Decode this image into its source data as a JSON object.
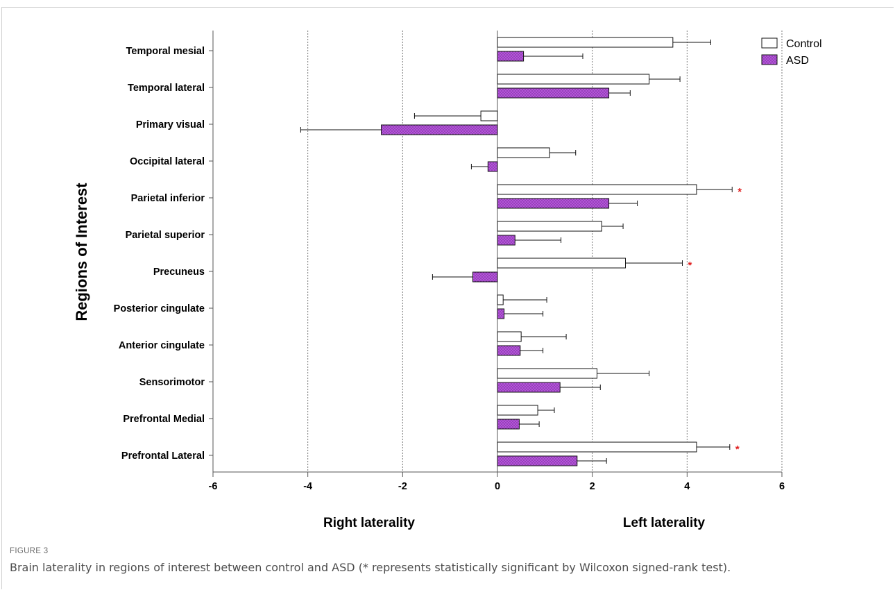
{
  "figure": {
    "label": "FIGURE 3",
    "caption": "Brain laterality in regions of interest between control and ASD (* represents statistically significant by Wilcoxon signed-rank test)."
  },
  "chart_data": {
    "type": "bar",
    "orientation": "horizontal",
    "title": "",
    "ylabel": "Regions of Interest",
    "side_labels": {
      "left": "Right laterality",
      "right": "Left laterality"
    },
    "xlim": [
      -6,
      6
    ],
    "xticks": [
      -6,
      -4,
      -2,
      0,
      2,
      4,
      6
    ],
    "xtick_labels": [
      "-6",
      "-4",
      "-2",
      "0",
      "2",
      "4",
      "6"
    ],
    "grid": "vertical dotted lines at -4, -2, 2, 4, 6",
    "legend_position": "top-right",
    "categories": [
      "Temporal mesial",
      "Temporal lateral",
      "Primary visual",
      "Occipital lateral",
      "Parietal inferior",
      "Parietal superior",
      "Precuneus",
      "Posterior cingulate",
      "Anterior cingulate",
      "Sensorimotor",
      "Prefrontal Medial",
      "Prefrontal Lateral"
    ],
    "series": [
      {
        "name": "Control",
        "fill": "#ffffff",
        "values": [
          3.7,
          3.2,
          -0.35,
          1.1,
          4.2,
          2.2,
          2.7,
          0.12,
          0.5,
          2.1,
          0.85,
          4.2
        ],
        "errors": [
          0.8,
          0.65,
          1.4,
          0.55,
          0.75,
          0.45,
          1.2,
          0.92,
          0.95,
          1.1,
          0.35,
          0.7
        ]
      },
      {
        "name": "ASD",
        "fill": "#b455d9",
        "values": [
          0.55,
          2.35,
          -2.45,
          -0.2,
          2.35,
          0.37,
          -0.52,
          0.14,
          0.48,
          1.32,
          0.46,
          1.68
        ],
        "errors": [
          1.25,
          0.45,
          1.7,
          0.35,
          0.6,
          0.97,
          0.85,
          0.82,
          0.48,
          0.85,
          0.42,
          0.62
        ]
      }
    ],
    "significance": [
      {
        "category": "Parietal inferior",
        "series": "Control",
        "mark": "*"
      },
      {
        "category": "Precuneus",
        "series": "Control",
        "mark": "*"
      },
      {
        "category": "Prefrontal Lateral",
        "series": "Control",
        "mark": "*"
      }
    ],
    "colors": {
      "significance": "#e02020",
      "asd_fill": "#b455d9",
      "asd_dots": "#5a1a78",
      "grid": "#777777"
    }
  }
}
